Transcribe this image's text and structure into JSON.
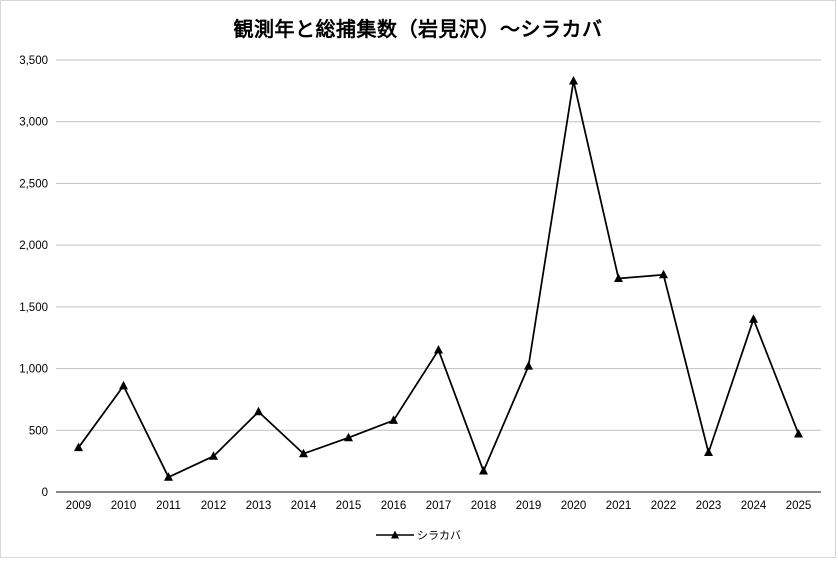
{
  "chart_data": {
    "type": "line",
    "title": "観測年と総捕集数（岩見沢）～シラカバ",
    "categories": [
      "2009",
      "2010",
      "2011",
      "2012",
      "2013",
      "2014",
      "2015",
      "2016",
      "2017",
      "2018",
      "2019",
      "2020",
      "2021",
      "2022",
      "2023",
      "2024",
      "2025"
    ],
    "series": [
      {
        "name": "シラカバ",
        "marker": "triangle-icon",
        "color": "#000000",
        "values": [
          360,
          860,
          120,
          290,
          650,
          310,
          440,
          580,
          1150,
          170,
          1020,
          3330,
          1730,
          1760,
          320,
          1400,
          470
        ]
      }
    ],
    "xlabel": "",
    "ylabel": "",
    "ylim": [
      0,
      3500
    ],
    "ytick_step": 500,
    "grid": true,
    "legend_position": "bottom"
  },
  "colors": {
    "gridline": "#c0c0c0",
    "axis": "#808080",
    "text": "#000000",
    "series": "#000000",
    "background": "#ffffff"
  }
}
